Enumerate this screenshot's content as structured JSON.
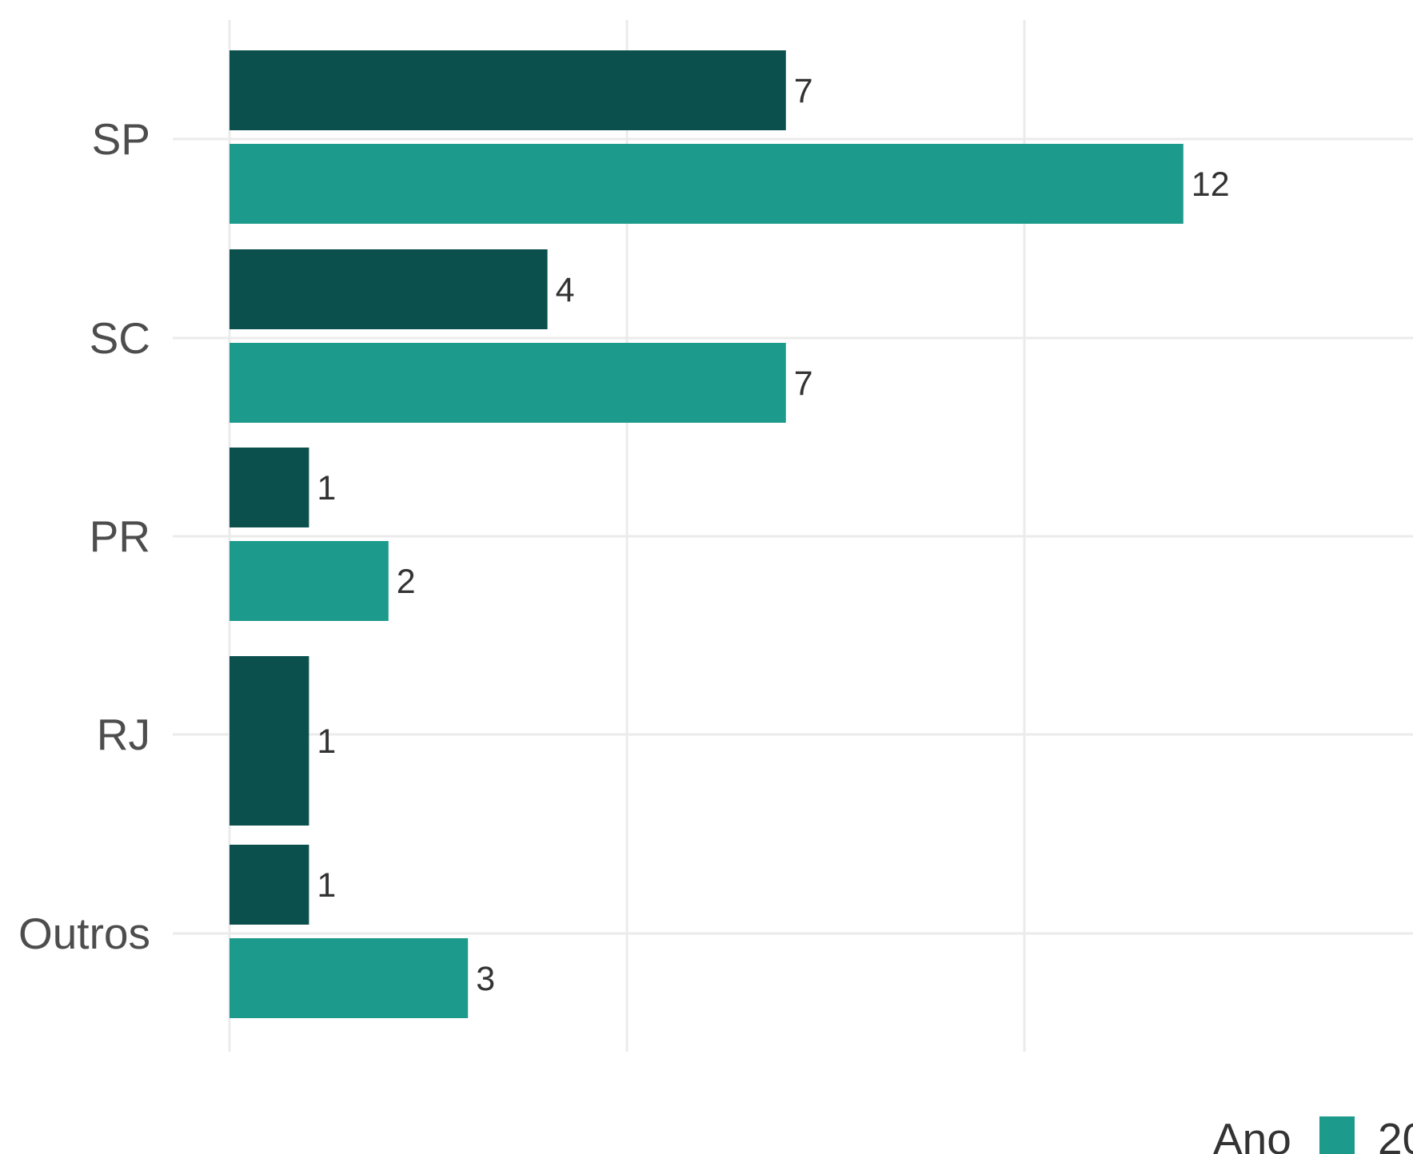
{
  "chart_data": {
    "type": "bar",
    "orientation": "horizontal",
    "categories": [
      "SP",
      "SC",
      "PR",
      "RJ",
      "Outros"
    ],
    "series": [
      {
        "name": "",
        "color": "#0b504d",
        "values": [
          7,
          4,
          1,
          1,
          1
        ]
      },
      {
        "name": "",
        "color": "#1c9a8c",
        "values": [
          12,
          7,
          2,
          null,
          3
        ]
      }
    ],
    "title": "",
    "xlabel": "",
    "ylabel": "",
    "xlim": [
      0,
      14.5
    ],
    "grid": true,
    "data_labels": true,
    "legend": {
      "title": "Ano",
      "position": "bottom",
      "visible_entries": [
        {
          "color": "#1c9a8c",
          "label_fragment": "20"
        }
      ]
    }
  }
}
